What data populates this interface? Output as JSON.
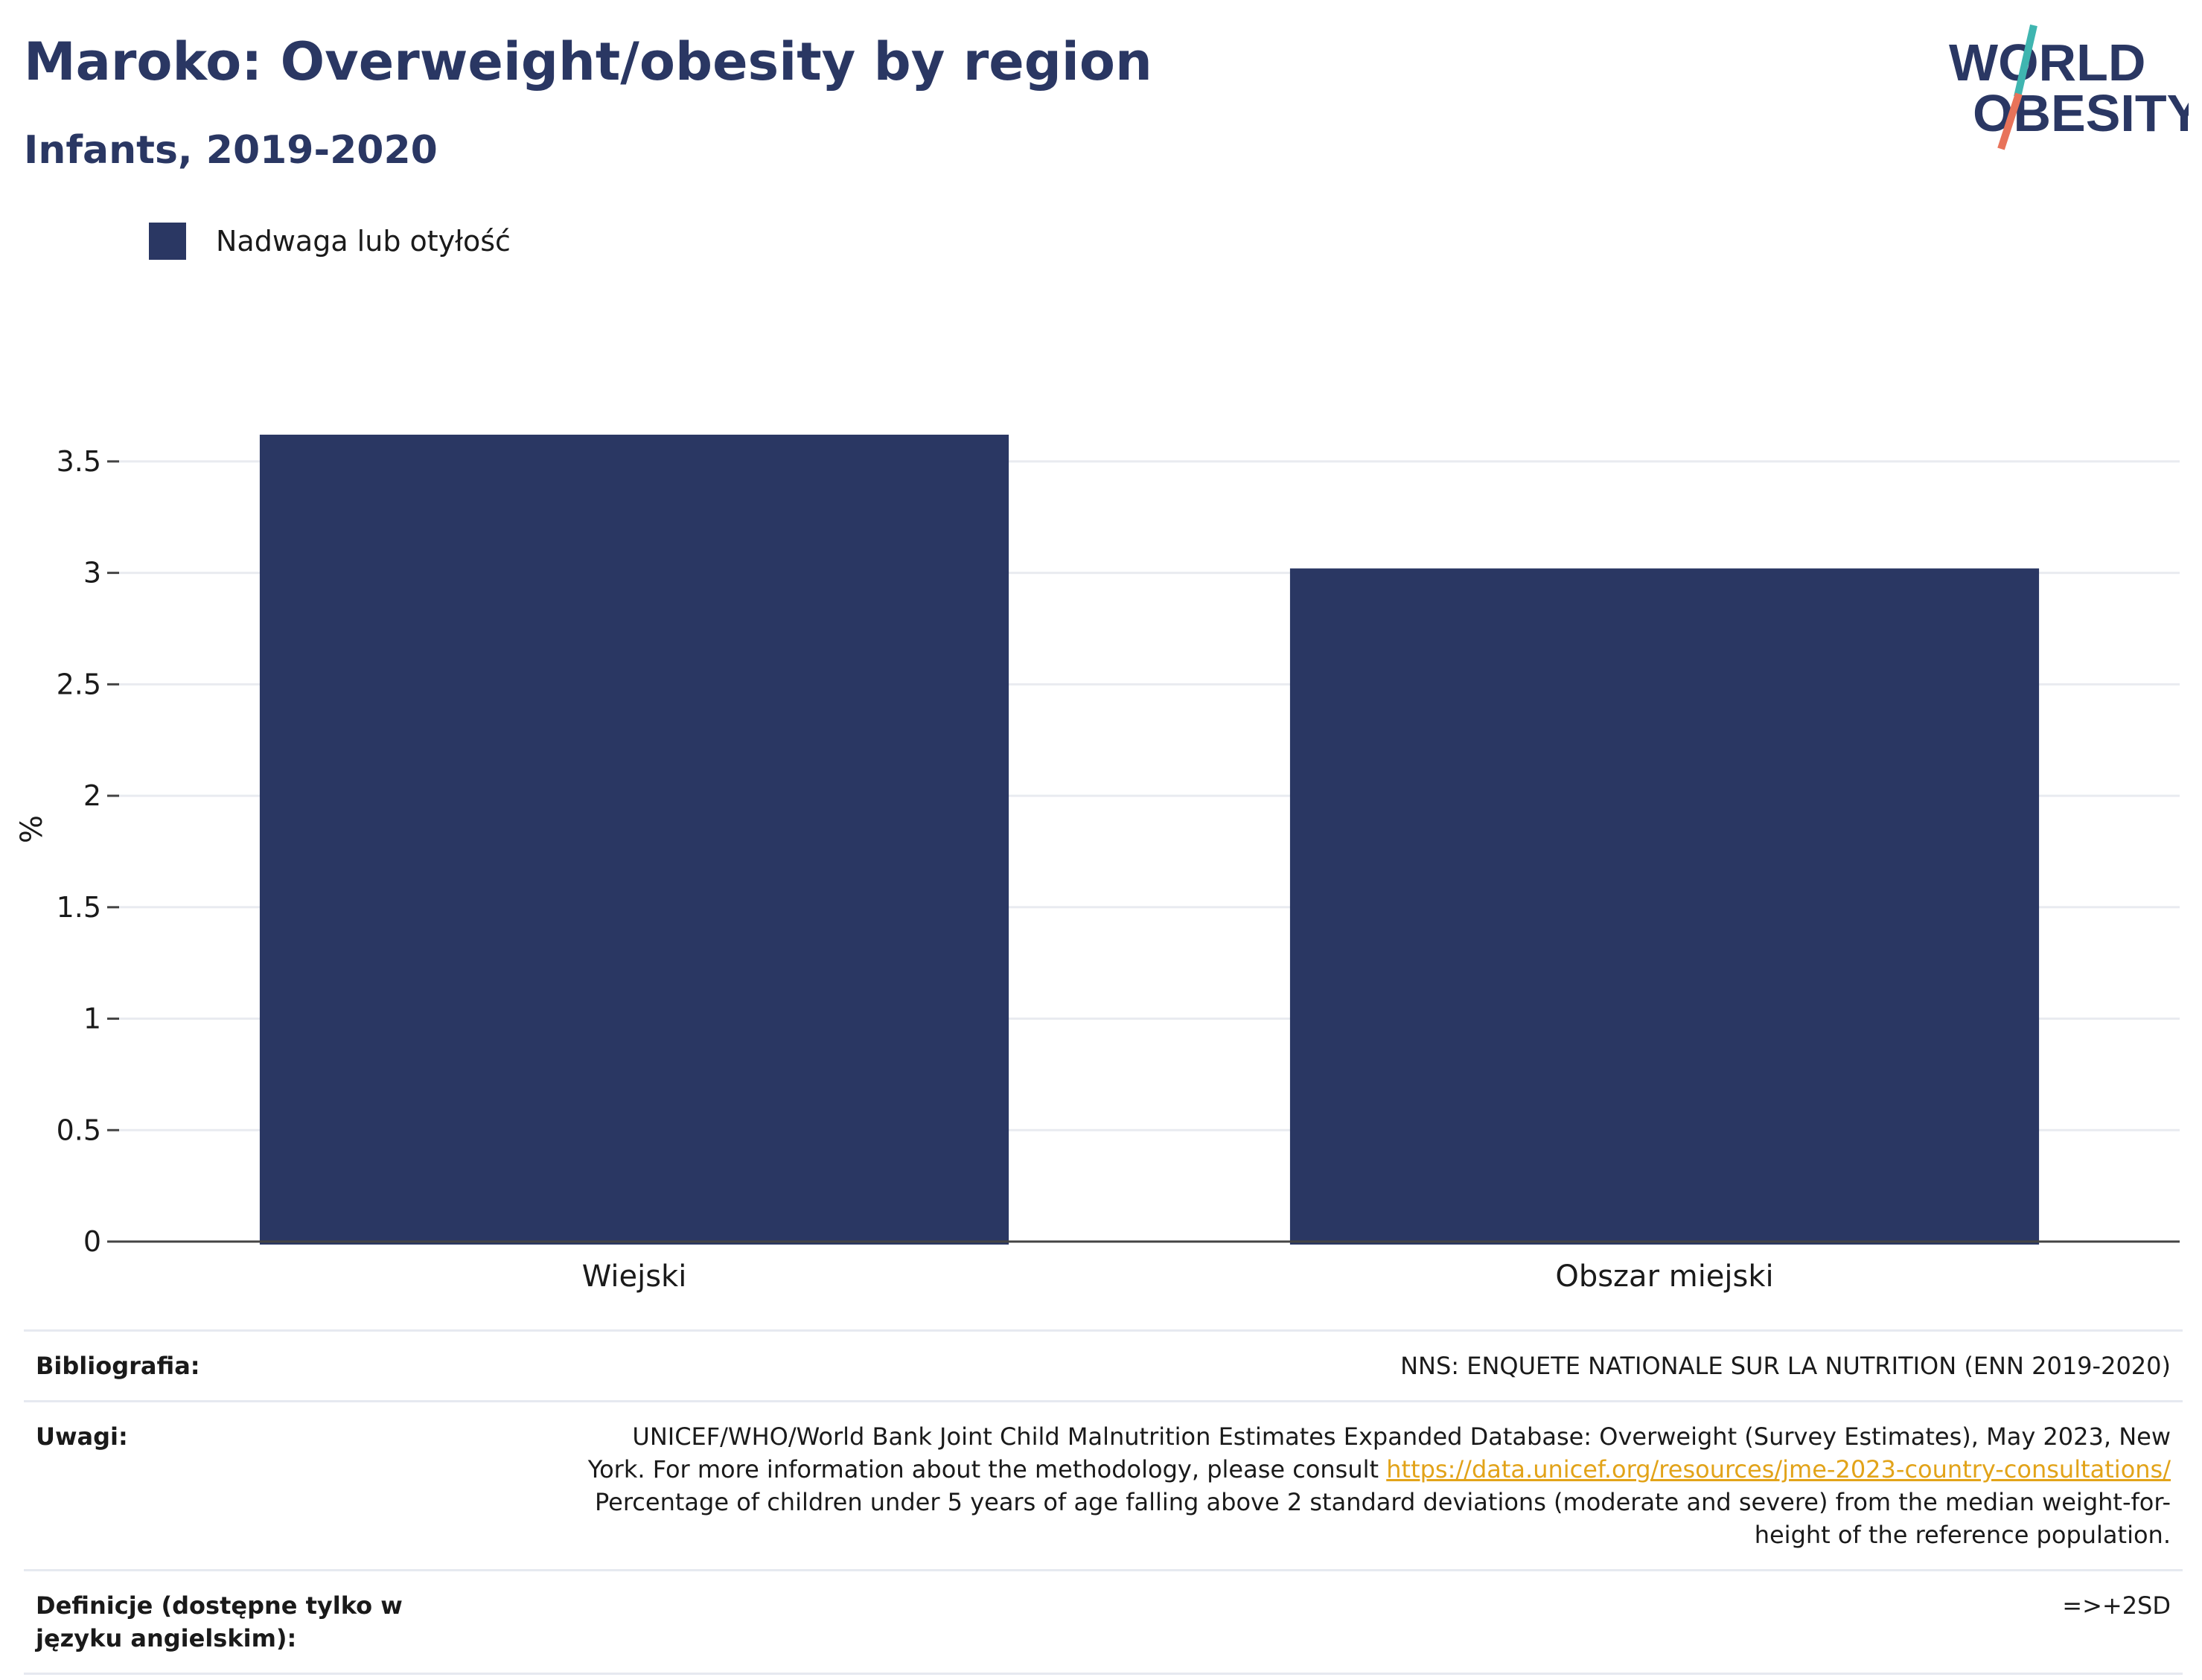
{
  "header": {
    "title": "Maroko: Overweight/obesity by region",
    "subtitle": "Infants, 2019-2020"
  },
  "logo": {
    "line1": "WORLD",
    "line2": "OBESITY",
    "colors": {
      "text": "#2a3763",
      "slash_top": "#3fb5b0",
      "slash_bottom": "#e8735a"
    }
  },
  "legend": {
    "label": "Nadwaga lub otyłość",
    "color": "#2a3763"
  },
  "chart_data": {
    "type": "bar",
    "categories": [
      "Wiejski",
      "Obszar miejski"
    ],
    "series": [
      {
        "name": "Nadwaga lub otyłość",
        "values": [
          3.62,
          3.02
        ],
        "color": "#2a3763"
      }
    ],
    "ylabel": "%",
    "ylim": [
      0,
      3.7
    ],
    "yticks": [
      0,
      0.5,
      1,
      1.5,
      2,
      2.5,
      3,
      3.5
    ],
    "ytick_labels": [
      "0",
      "0.5",
      "1",
      "1.5",
      "2",
      "2.5",
      "3",
      "3.5"
    ],
    "grid": true,
    "legend_position": "top-left"
  },
  "footer": {
    "bibliography_label": "Bibliografia:",
    "bibliography_value": "NNS: ENQUETE NATIONALE SUR LA NUTRITION (ENN 2019-2020)",
    "notes_label": "Uwagi:",
    "notes_text_1": "UNICEF/WHO/World Bank Joint Child Malnutrition Estimates Expanded Database: Overweight (Survey Estimates), May 2023, New York. For more information about the methodology, please consult ",
    "notes_link": "https://data.unicef.org/resources/jme-2023-country-consultations/",
    "notes_text_2": "Percentage of children under 5 years of age falling above 2 standard deviations (moderate and severe) from the median weight-for-height of the reference population.",
    "definitions_label": "Definicje (dostępne tylko w języku angielskim):",
    "definitions_value": "=>+2SD"
  }
}
